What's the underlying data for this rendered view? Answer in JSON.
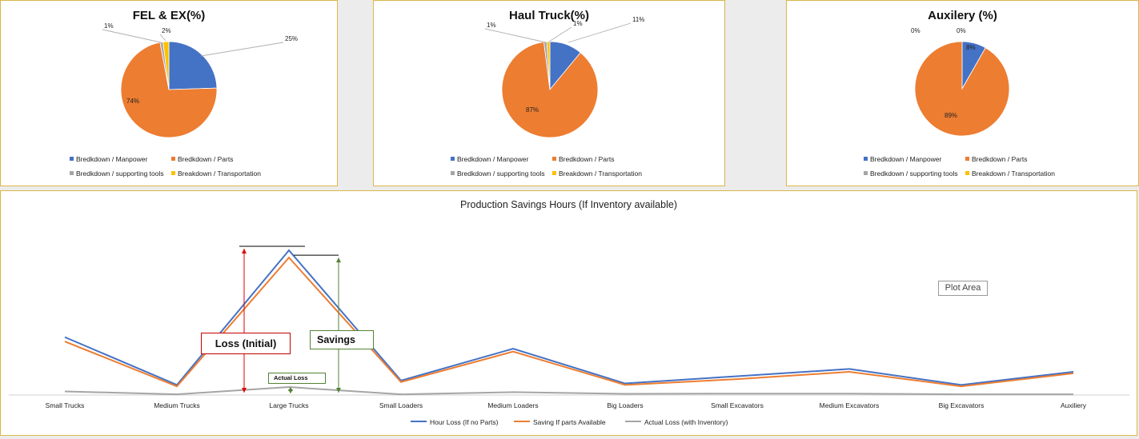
{
  "colors": {
    "blue": "#4472c4",
    "orange": "#ed7d31",
    "gray": "#a5a5a5",
    "yellow": "#ffc000",
    "panel_border": "#d9b84a",
    "loss_red": "#e00000",
    "savings_green": "#548235"
  },
  "chart_data": [
    {
      "type": "pie",
      "title": "FEL & EX(%)",
      "categories": [
        "Bredkdown / Manpower",
        "Bredkdown / Parts",
        "Bredkdown / supporting tools",
        "Breakdown / Transportation"
      ],
      "values": [
        25,
        74,
        1,
        2
      ],
      "labels": [
        "25%",
        "74%",
        "1%",
        "2%"
      ]
    },
    {
      "type": "pie",
      "title": "Haul Truck(%)",
      "categories": [
        "Bredkdown / Manpower",
        "Bredkdown / Parts",
        "Bredkdown / supporting tools",
        "Breakdown / Transportation"
      ],
      "values": [
        11,
        87,
        1,
        1
      ],
      "labels": [
        "11%",
        "87%",
        "1%",
        "1%"
      ]
    },
    {
      "type": "pie",
      "title": "Auxilery (%)",
      "categories": [
        "Bredkdown / Manpower",
        "Bredkdown / Parts",
        "Bredkdown / supporting tools",
        "Breakdown / Transportation"
      ],
      "values": [
        8,
        89,
        0,
        0
      ],
      "labels": [
        "8%",
        "89%",
        "0%",
        "0%"
      ]
    },
    {
      "type": "line",
      "title": "Production Savings Hours (If Inventory available)",
      "categories": [
        "Small Trucks",
        "Medium Trucks",
        "Large Trucks",
        "Small Loaders",
        "Medium Loaders",
        "Big Loaders",
        "Small Excavators",
        "Medium Excavators",
        "Big Excavators",
        "Auxiliery"
      ],
      "series": [
        {
          "name": "Hour Loss (If no Parts)",
          "values": [
            40,
            7,
            100,
            10,
            32,
            8,
            13,
            18,
            7,
            16
          ]
        },
        {
          "name": "Saving If parts Available",
          "values": [
            37,
            6,
            95,
            9,
            30,
            7,
            11,
            16,
            6,
            15
          ]
        },
        {
          "name": "Actual Loss (with Inventory)",
          "values": [
            2.5,
            0.5,
            5.5,
            0.5,
            2,
            0.8,
            1,
            1,
            0.5,
            0.5
          ]
        }
      ],
      "ylim": [
        0,
        105
      ],
      "legend": "bottom",
      "annotations": {
        "loss": "Loss (Initial)",
        "savings": "Savings",
        "actual": "Actual Loss",
        "plot_area": "Plot Area"
      }
    }
  ]
}
